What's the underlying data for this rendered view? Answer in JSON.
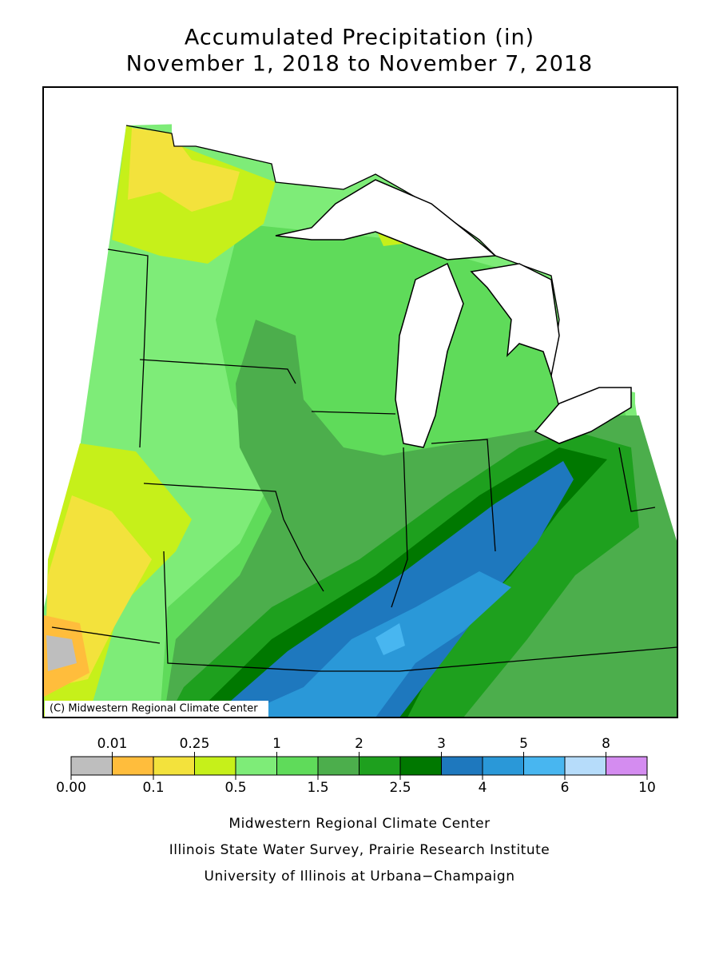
{
  "title": [
    "Accumulated Precipitation (in)",
    "November 1, 2018 to November 7, 2018"
  ],
  "copyright": "(C) Midwestern Regional Climate Center",
  "legend": {
    "bounds": [
      {
        "value": 0,
        "label": "0.00"
      },
      0.01,
      0.1,
      0.25,
      0.5,
      1,
      1.5,
      2,
      2.5,
      3,
      4,
      5,
      6,
      8,
      10
    ],
    "colors": [
      "#bebebe",
      "#ffbd3c",
      "#f3e23c",
      "#c6f01a",
      "#7eec78",
      "#5fdb5a",
      "#4cae4c",
      "#1ea01e",
      "#007800",
      "#1e78be",
      "#2a98d8",
      "#48b6f0",
      "#b6dcfa",
      "#d48cf0"
    ]
  },
  "credits": [
    "Midwestern Regional Climate Center",
    "Illinois State Water Survey, Prairie Research Institute",
    "University of Illinois at Urbana−Champaign"
  ]
}
